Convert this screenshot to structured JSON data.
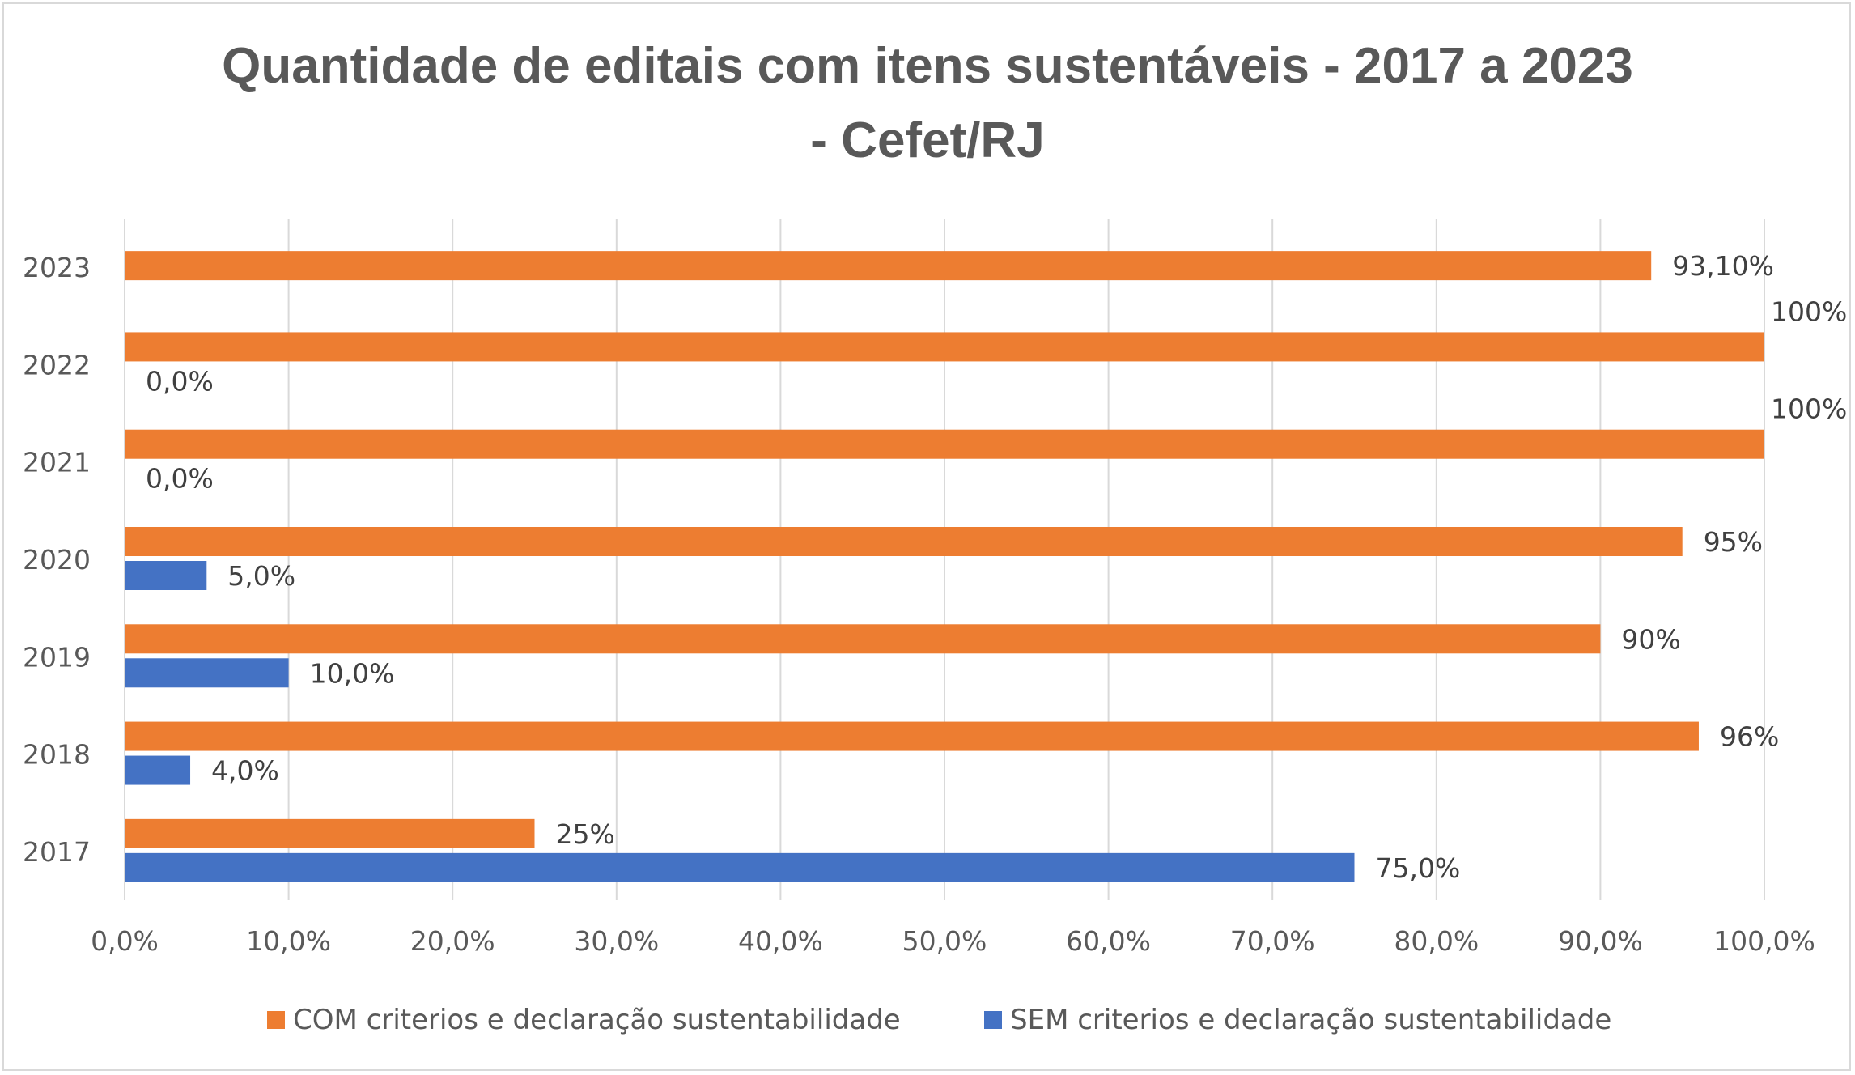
{
  "chart_data": {
    "type": "bar",
    "orientation": "horizontal",
    "title": "Quantidade de editais com itens sustentáveis - 2017 a 2023",
    "title_line2": "- Cefet/RJ",
    "categories": [
      "2017",
      "2018",
      "2019",
      "2020",
      "2021",
      "2022",
      "2023"
    ],
    "series": [
      {
        "name": "COM criterios e declaração sustentabilidade",
        "color": "#ed7d31",
        "values": [
          25,
          96,
          90,
          95,
          100,
          100,
          93.1
        ],
        "labels": [
          "25%",
          "96%",
          "90%",
          "95%",
          "100%",
          "100%",
          "93,10%"
        ]
      },
      {
        "name": "SEM criterios e declaração sustentabilidade",
        "color": "#4472c4",
        "values": [
          75,
          4,
          10,
          5,
          0,
          0,
          null
        ],
        "labels": [
          "75,0%",
          "4,0%",
          "10,0%",
          "5,0%",
          "0,0%",
          "0,0%",
          null
        ]
      }
    ],
    "xlim": [
      0,
      100
    ],
    "xticks": [
      "0,0%",
      "10,0%",
      "20,0%",
      "30,0%",
      "40,0%",
      "50,0%",
      "60,0%",
      "70,0%",
      "80,0%",
      "90,0%",
      "100,0%"
    ],
    "grid": true,
    "legend": "bottom"
  }
}
